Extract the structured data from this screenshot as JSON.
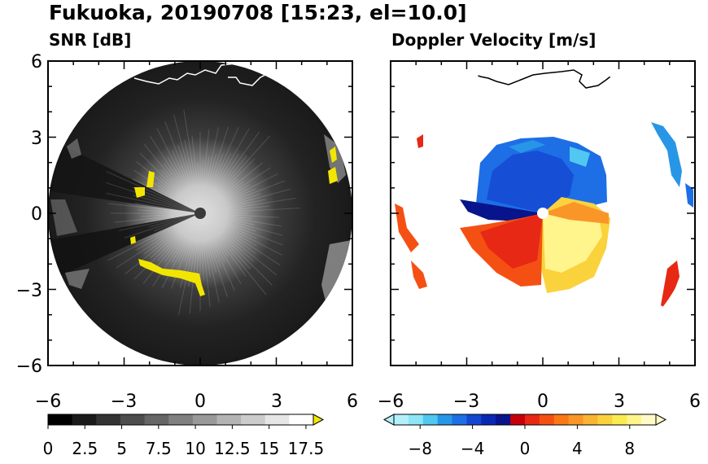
{
  "figure": {
    "title": "Fukuoka, 20190708 [15:23, el=10.0]"
  },
  "chart_data": [
    {
      "type": "heatmap",
      "title": "SNR [dB]",
      "xlim": [
        -6,
        6
      ],
      "ylim": [
        -6,
        6
      ],
      "x_ticks": [
        "−6",
        "−3",
        "0",
        "3",
        "6"
      ],
      "y_ticks": [
        "6",
        "3",
        "0",
        "−3",
        "−6"
      ],
      "range_km": 6,
      "colorbar": {
        "min": 0,
        "max": 18,
        "tick_labels": [
          "0",
          "2.5",
          "5",
          "7.5",
          "10",
          "12.5",
          "15",
          "17.5"
        ],
        "tick_values": [
          0,
          2.5,
          5,
          7.5,
          10,
          12.5,
          15,
          17.5
        ],
        "extend": "max",
        "colors": [
          "#000000",
          "#1a1a1a",
          "#333333",
          "#4d4d4d",
          "#666666",
          "#808080",
          "#999999",
          "#b3b3b3",
          "#cccccc",
          "#e6e6e6",
          "#ffffff"
        ],
        "extend_color": "#f2e600"
      }
    },
    {
      "type": "heatmap",
      "title": "Doppler Velocity [m/s]",
      "xlim": [
        -6,
        6
      ],
      "ylim": [
        -6,
        6
      ],
      "x_ticks": [
        "−6",
        "−3",
        "0",
        "3",
        "6"
      ],
      "y_ticks": [
        "6",
        "3",
        "0",
        "−3",
        "−6"
      ],
      "range_km": 6,
      "colorbar": {
        "min": -10,
        "max": 10,
        "tick_labels": [
          "−8",
          "−4",
          "0",
          "4",
          "8"
        ],
        "tick_values": [
          -8,
          -4,
          0,
          4,
          8
        ],
        "extend": "both",
        "colors": [
          "#b4f0fa",
          "#8ce6f5",
          "#50c8f0",
          "#2896e6",
          "#1e6ee6",
          "#1446d2",
          "#0a28b4",
          "#08148c",
          "#c8000a",
          "#e62814",
          "#f55014",
          "#fa7814",
          "#fa9628",
          "#fab432",
          "#fad23c",
          "#faeb50",
          "#fff58c",
          "#fffac8"
        ]
      }
    }
  ]
}
